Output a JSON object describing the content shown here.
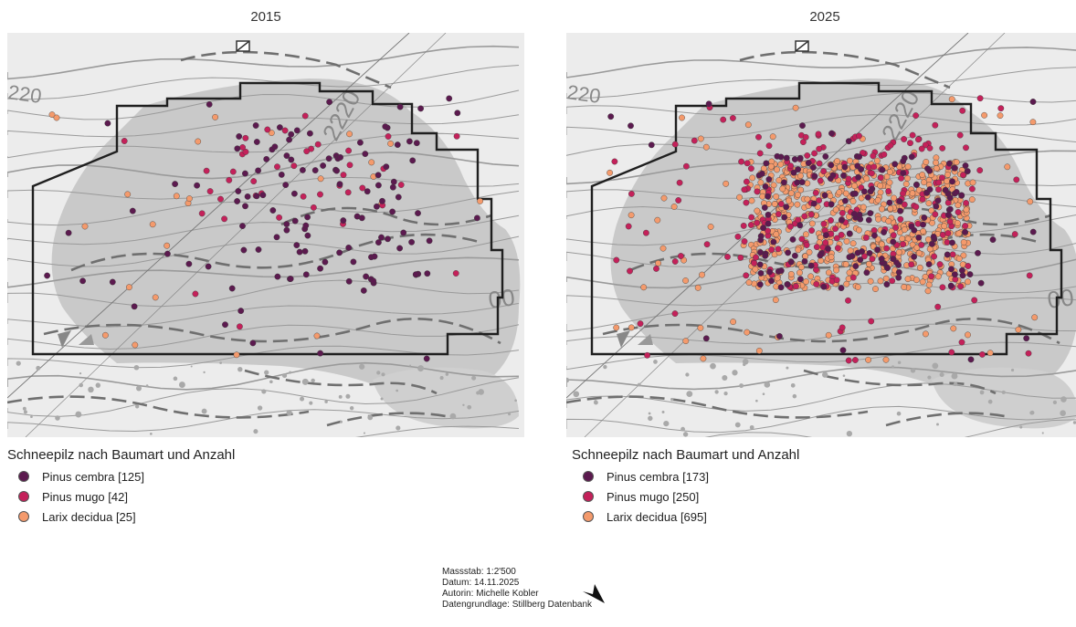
{
  "maps": [
    {
      "year": "2015",
      "legend": {
        "title": "Schneepilz nach Baumart und Anzahl",
        "items": [
          {
            "label": "Pinus cembra [125]",
            "color": "#5c1a4f"
          },
          {
            "label": "Pinus mugo [42]",
            "color": "#c4215a"
          },
          {
            "label": "Larix decidua [25]",
            "color": "#f49a6c"
          }
        ]
      }
    },
    {
      "year": "2025",
      "legend": {
        "title": "Schneepilz nach Baumart und Anzahl",
        "items": [
          {
            "label": "Pinus cembra [173]",
            "color": "#5c1a4f"
          },
          {
            "label": "Pinus mugo [250]",
            "color": "#c4215a"
          },
          {
            "label": "Larix decidua [695]",
            "color": "#f49a6c"
          }
        ]
      }
    }
  ],
  "contour_labels": {
    "upper": "2220",
    "left": "220",
    "right": "00"
  },
  "footer": {
    "scale": "Massstab: 1:2'500",
    "date": "Datum: 14.11.2025",
    "author": "Autorin: Michelle Kobler",
    "source": "Datengrundlage: Stillberg Datenbank"
  },
  "north_arrow": "north-arrow-icon"
}
